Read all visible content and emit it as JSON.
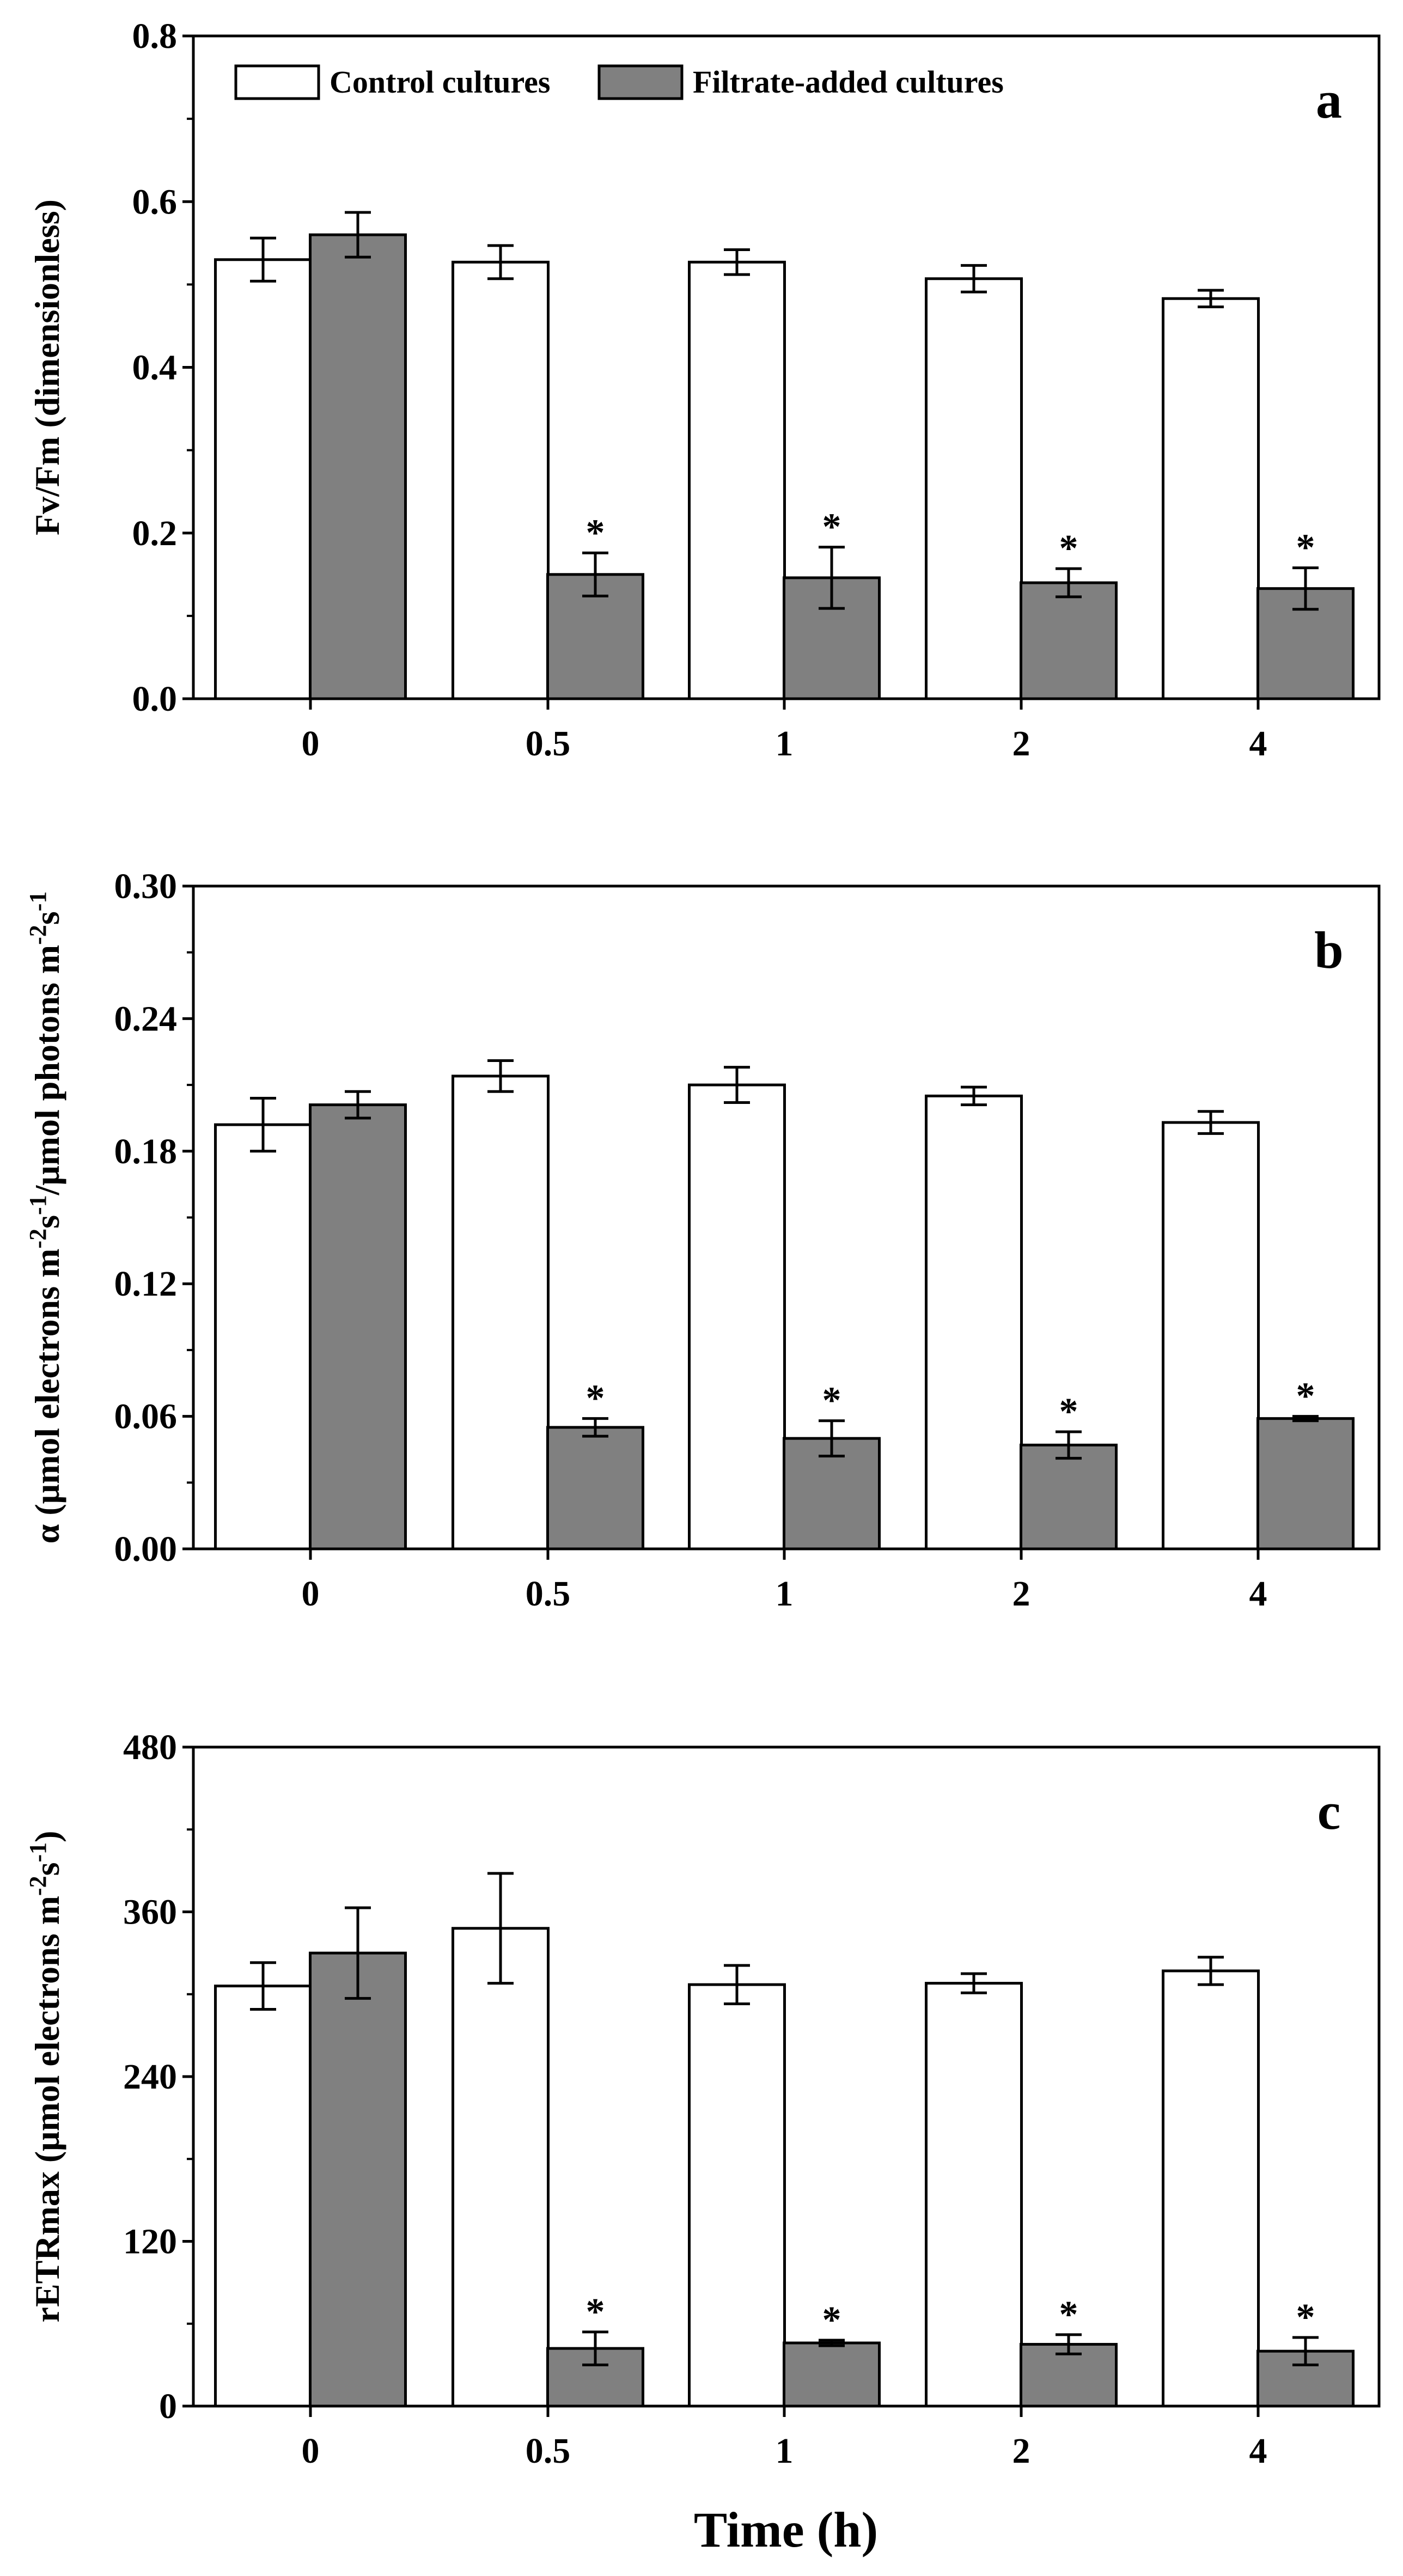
{
  "legend": {
    "control_label": "Control cultures",
    "filtrate_label": "Filtrate-added cultures"
  },
  "colors": {
    "control": "#ffffff",
    "filtrate": "#808080",
    "stroke": "#000000"
  },
  "xlabel": "Time (h)",
  "chart_data": [
    {
      "type": "bar",
      "panel_label": "a",
      "ylabel": "Fv/Fm (dimensionless)",
      "ylabel_parts": [
        {
          "text": "Fv/Fm (dimensionless)",
          "sup": false
        }
      ],
      "ylim": [
        0,
        0.8
      ],
      "yticks": [
        0.0,
        0.2,
        0.4,
        0.6,
        0.8
      ],
      "ytick_labels": [
        "0.0",
        "0.2",
        "0.4",
        "0.6",
        "0.8"
      ],
      "categories": [
        "0",
        "0.5",
        "1",
        "2",
        "4"
      ],
      "series": [
        {
          "name": "Control cultures",
          "values": [
            0.53,
            0.527,
            0.527,
            0.507,
            0.483
          ],
          "errors": [
            0.026,
            0.02,
            0.015,
            0.016,
            0.01
          ],
          "stars": [
            false,
            false,
            false,
            false,
            false
          ]
        },
        {
          "name": "Filtrate-added cultures",
          "values": [
            0.56,
            0.15,
            0.146,
            0.14,
            0.133
          ],
          "errors": [
            0.027,
            0.026,
            0.037,
            0.017,
            0.025
          ],
          "stars": [
            false,
            true,
            true,
            true,
            true
          ]
        }
      ],
      "star_symbol": "*"
    },
    {
      "type": "bar",
      "panel_label": "b",
      "ylabel": "α (μmol electrons m-2s-1/μmol photons m-2s-1)",
      "ylabel_parts": [
        {
          "text": "α (μmol electrons m",
          "sup": false
        },
        {
          "text": "-2",
          "sup": true
        },
        {
          "text": "s",
          "sup": false
        },
        {
          "text": "-1",
          "sup": true
        },
        {
          "text": "/μmol  photons m",
          "sup": false
        },
        {
          "text": "-2",
          "sup": true
        },
        {
          "text": "s",
          "sup": false
        },
        {
          "text": "-1",
          "sup": true
        }
      ],
      "ylim": [
        0,
        0.3
      ],
      "yticks": [
        0.0,
        0.06,
        0.12,
        0.18,
        0.24,
        0.3
      ],
      "ytick_labels": [
        "0.00",
        "0.06",
        "0.12",
        "0.18",
        "0.24",
        "0.30"
      ],
      "categories": [
        "0",
        "0.5",
        "1",
        "2",
        "4"
      ],
      "series": [
        {
          "name": "Control cultures",
          "values": [
            0.192,
            0.214,
            0.21,
            0.205,
            0.193
          ],
          "errors": [
            0.012,
            0.007,
            0.008,
            0.004,
            0.005
          ],
          "stars": [
            false,
            false,
            false,
            false,
            false
          ]
        },
        {
          "name": "Filtrate-added cultures",
          "values": [
            0.201,
            0.055,
            0.05,
            0.047,
            0.059
          ],
          "errors": [
            0.006,
            0.004,
            0.008,
            0.006,
            0.001
          ],
          "stars": [
            false,
            true,
            true,
            true,
            true
          ]
        }
      ],
      "star_symbol": "*"
    },
    {
      "type": "bar",
      "panel_label": "c",
      "ylabel": "rETRmax (μmol electrons m-2s-1)",
      "ylabel_parts": [
        {
          "text": "rETRmax (μmol electrons m",
          "sup": false
        },
        {
          "text": "-2",
          "sup": true
        },
        {
          "text": "s",
          "sup": false
        },
        {
          "text": "-1",
          "sup": true
        },
        {
          "text": ")",
          "sup": false
        }
      ],
      "ylim": [
        0,
        480
      ],
      "yticks": [
        0,
        120,
        240,
        360,
        480
      ],
      "ytick_labels": [
        "0",
        "120",
        "240",
        "360",
        "480"
      ],
      "categories": [
        "0",
        "0.5",
        "1",
        "2",
        "4"
      ],
      "series": [
        {
          "name": "Control cultures",
          "values": [
            306,
            348,
            307,
            308,
            317
          ],
          "errors": [
            17,
            40,
            14,
            7,
            10
          ],
          "stars": [
            false,
            false,
            false,
            false,
            false
          ]
        },
        {
          "name": "Filtrate-added cultures",
          "values": [
            330,
            42,
            46,
            45,
            40
          ],
          "errors": [
            33,
            12,
            2,
            7,
            10
          ],
          "stars": [
            false,
            true,
            true,
            true,
            true
          ]
        }
      ],
      "star_symbol": "*"
    }
  ]
}
